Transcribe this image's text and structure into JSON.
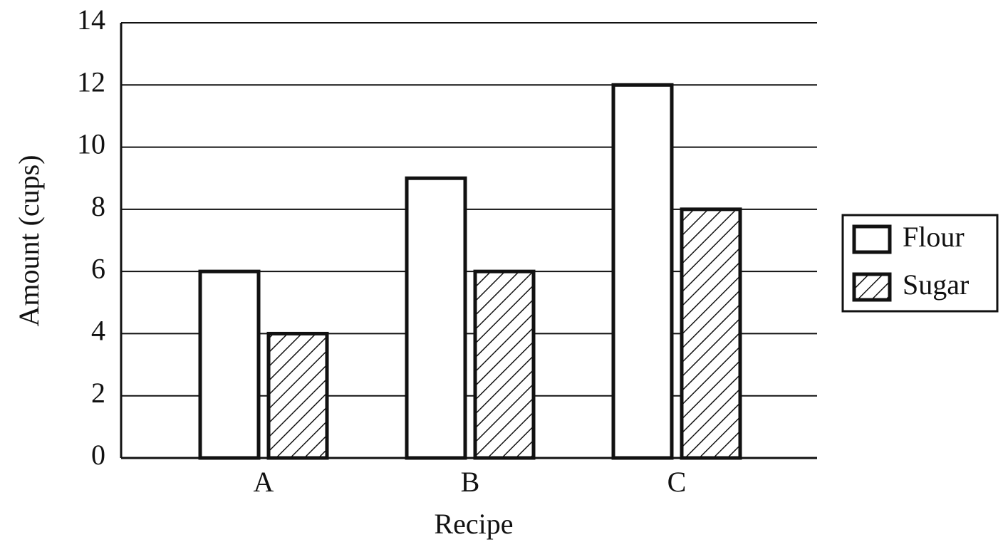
{
  "chart_data": {
    "type": "bar",
    "x_label": "Recipe",
    "y_label": "Amount (cups)",
    "categories": [
      "A",
      "B",
      "C"
    ],
    "series": [
      {
        "name": "Flour",
        "color": "#ffffff",
        "values": [
          6,
          9,
          12
        ]
      },
      {
        "name": "Sugar",
        "color": "#ffffff",
        "hatch": true,
        "values": [
          4,
          6,
          8
        ]
      }
    ],
    "ylim": [
      0,
      14
    ],
    "yticks": [
      0,
      2,
      4,
      6,
      8,
      10,
      12,
      14
    ],
    "grid": true,
    "legend": "right"
  }
}
